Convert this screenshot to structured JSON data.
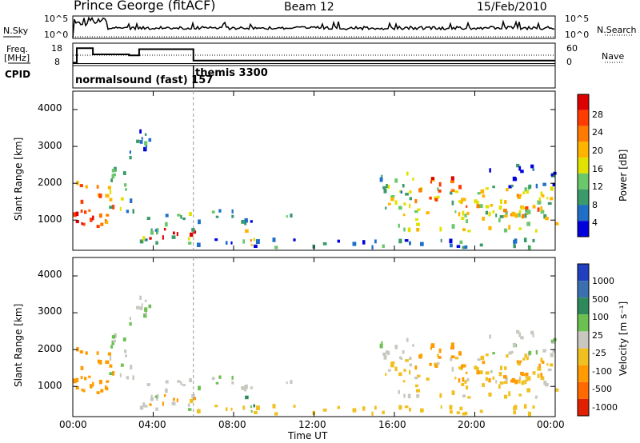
{
  "header": {
    "station": "Prince George (fitACF)",
    "beam": "Beam 12",
    "date": "15/Feb/2010"
  },
  "panels": {
    "nsky": {
      "label": "N.Sky",
      "ticks": [
        "10^5",
        "10^0"
      ],
      "right_label": "N.Search",
      "right_ticks": [
        "10^5",
        "10^0"
      ]
    },
    "freq": {
      "label_line1": "Freq.",
      "label_line2": "[MHz]",
      "ticks": [
        "18",
        "8"
      ],
      "right_label": "Nave",
      "right_ticks": [
        "60",
        "0"
      ]
    },
    "cpid": {
      "label": "CPID",
      "modes": [
        "normalsound (fast) 157",
        "themis 3300"
      ]
    }
  },
  "colorbars": {
    "power": {
      "title": "Power [dB]",
      "ticks": [
        "28",
        "24",
        "20",
        "16",
        "12",
        "8",
        "4"
      ],
      "colors": [
        "#0000dd",
        "#1f6fc8",
        "#3b9a6a",
        "#6ac86a",
        "#e2e200",
        "#ffb400",
        "#ff7a00",
        "#ff3c00",
        "#dd0000"
      ]
    },
    "velocity": {
      "title": "Velocity [m s⁻¹]",
      "ticks": [
        "1000",
        "500",
        "100",
        "25",
        "-25",
        "-100",
        "-500",
        "-1000"
      ],
      "colors": [
        "#2040c0",
        "#3a70b0",
        "#2e8a5a",
        "#6cc050",
        "#c8c8c0",
        "#f0c020",
        "#ff9a00",
        "#ff6a00",
        "#e02000"
      ]
    }
  },
  "axes": {
    "ylabel": "Slant Range [km]",
    "yticks": [
      "4000",
      "3000",
      "2000",
      "1000"
    ],
    "xticks": [
      "00:00",
      "04:00",
      "08:00",
      "12:00",
      "16:00",
      "20:00",
      "00:00"
    ],
    "xlabel": "Time UT"
  },
  "chart_data": {
    "type": "heatmap",
    "x_range": [
      "00:00",
      "24:00"
    ],
    "ylim": [
      180,
      4500
    ],
    "power_range_db": [
      0,
      30
    ],
    "velocity_range": [
      -1000,
      1000
    ],
    "blobs": [
      {
        "t": [
          0.0,
          2.0
        ],
        "r": [
          700,
          2100
        ],
        "power": 22,
        "velocity": -200
      },
      {
        "t": [
          0.0,
          1.2
        ],
        "r": [
          900,
          1400
        ],
        "power": 28,
        "velocity": -300
      },
      {
        "t": [
          1.5,
          3.0
        ],
        "r": [
          1200,
          2400
        ],
        "power": 10,
        "velocity": 10
      },
      {
        "t": [
          2.5,
          3.8
        ],
        "r": [
          2500,
          3500
        ],
        "power": 6,
        "velocity": 20
      },
      {
        "t": [
          3.5,
          6.0
        ],
        "r": [
          450,
          800
        ],
        "power": 27,
        "velocity": -120
      },
      {
        "t": [
          3.3,
          6.0
        ],
        "r": [
          300,
          1200
        ],
        "power": 10,
        "velocity": 5
      },
      {
        "t": [
          6.0,
          9.0
        ],
        "r": [
          900,
          1300
        ],
        "power": 8,
        "velocity": 15
      },
      {
        "t": [
          6.0,
          24.0
        ],
        "r": [
          250,
          500
        ],
        "power": 6,
        "velocity": -60
      },
      {
        "t": [
          8.5,
          9.2
        ],
        "r": [
          300,
          1000
        ],
        "power": 18,
        "velocity": 120
      },
      {
        "t": [
          10.5,
          11.5
        ],
        "r": [
          900,
          1150
        ],
        "power": 7,
        "velocity": 10
      },
      {
        "t": [
          15.2,
          17.0
        ],
        "r": [
          1400,
          2300
        ],
        "power": 10,
        "velocity": 10
      },
      {
        "t": [
          15.5,
          24.0
        ],
        "r": [
          700,
          1900
        ],
        "power": 14,
        "velocity": -40
      },
      {
        "t": [
          17.0,
          19.2
        ],
        "r": [
          1500,
          2200
        ],
        "power": 24,
        "velocity": -250
      },
      {
        "t": [
          18.5,
          23.5
        ],
        "r": [
          1100,
          1700
        ],
        "power": 20,
        "velocity": -150
      },
      {
        "t": [
          20.5,
          24.0
        ],
        "r": [
          1900,
          2500
        ],
        "power": 5,
        "velocity": 15
      }
    ]
  }
}
